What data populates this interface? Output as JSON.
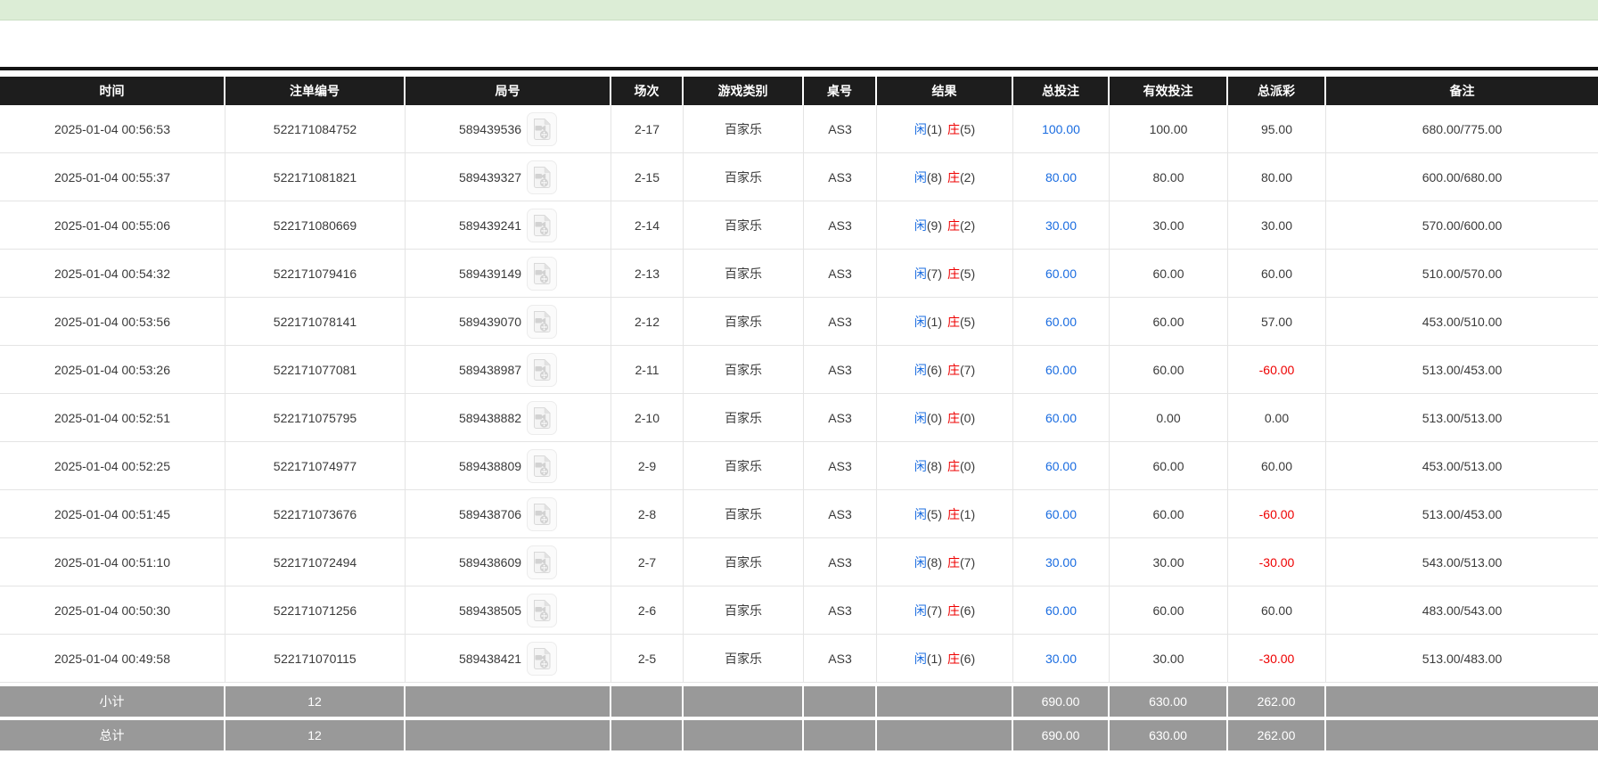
{
  "table": {
    "columns": [
      "时间",
      "注单编号",
      "局号",
      "场次",
      "游戏类别",
      "桌号",
      "结果",
      "总投注",
      "有效投注",
      "总派彩",
      "备注"
    ],
    "rows": [
      {
        "time": "2025-01-04 00:56:53",
        "bet_id": "522171084752",
        "round": "589439536",
        "session": "2-17",
        "game_type": "百家乐",
        "table_no": "AS3",
        "result": {
          "player_label": "闲",
          "player_score": "(1)",
          "banker_label": "庄",
          "banker_score": "(5)"
        },
        "total_bet": "100.00",
        "valid_bet": "100.00",
        "payout": "95.00",
        "remark": "680.00/775.00"
      },
      {
        "time": "2025-01-04 00:55:37",
        "bet_id": "522171081821",
        "round": "589439327",
        "session": "2-15",
        "game_type": "百家乐",
        "table_no": "AS3",
        "result": {
          "player_label": "闲",
          "player_score": "(8)",
          "banker_label": "庄",
          "banker_score": "(2)"
        },
        "total_bet": "80.00",
        "valid_bet": "80.00",
        "payout": "80.00",
        "remark": "600.00/680.00"
      },
      {
        "time": "2025-01-04 00:55:06",
        "bet_id": "522171080669",
        "round": "589439241",
        "session": "2-14",
        "game_type": "百家乐",
        "table_no": "AS3",
        "result": {
          "player_label": "闲",
          "player_score": "(9)",
          "banker_label": "庄",
          "banker_score": "(2)"
        },
        "total_bet": "30.00",
        "valid_bet": "30.00",
        "payout": "30.00",
        "remark": "570.00/600.00"
      },
      {
        "time": "2025-01-04 00:54:32",
        "bet_id": "522171079416",
        "round": "589439149",
        "session": "2-13",
        "game_type": "百家乐",
        "table_no": "AS3",
        "result": {
          "player_label": "闲",
          "player_score": "(7)",
          "banker_label": "庄",
          "banker_score": "(5)"
        },
        "total_bet": "60.00",
        "valid_bet": "60.00",
        "payout": "60.00",
        "remark": "510.00/570.00"
      },
      {
        "time": "2025-01-04 00:53:56",
        "bet_id": "522171078141",
        "round": "589439070",
        "session": "2-12",
        "game_type": "百家乐",
        "table_no": "AS3",
        "result": {
          "player_label": "闲",
          "player_score": "(1)",
          "banker_label": "庄",
          "banker_score": "(5)"
        },
        "total_bet": "60.00",
        "valid_bet": "60.00",
        "payout": "57.00",
        "remark": "453.00/510.00"
      },
      {
        "time": "2025-01-04 00:53:26",
        "bet_id": "522171077081",
        "round": "589438987",
        "session": "2-11",
        "game_type": "百家乐",
        "table_no": "AS3",
        "result": {
          "player_label": "闲",
          "player_score": "(6)",
          "banker_label": "庄",
          "banker_score": "(7)"
        },
        "total_bet": "60.00",
        "valid_bet": "60.00",
        "payout": "-60.00",
        "remark": "513.00/453.00"
      },
      {
        "time": "2025-01-04 00:52:51",
        "bet_id": "522171075795",
        "round": "589438882",
        "session": "2-10",
        "game_type": "百家乐",
        "table_no": "AS3",
        "result": {
          "player_label": "闲",
          "player_score": "(0)",
          "banker_label": "庄",
          "banker_score": "(0)"
        },
        "total_bet": "60.00",
        "valid_bet": "0.00",
        "payout": "0.00",
        "remark": "513.00/513.00"
      },
      {
        "time": "2025-01-04 00:52:25",
        "bet_id": "522171074977",
        "round": "589438809",
        "session": "2-9",
        "game_type": "百家乐",
        "table_no": "AS3",
        "result": {
          "player_label": "闲",
          "player_score": "(8)",
          "banker_label": "庄",
          "banker_score": "(0)"
        },
        "total_bet": "60.00",
        "valid_bet": "60.00",
        "payout": "60.00",
        "remark": "453.00/513.00"
      },
      {
        "time": "2025-01-04 00:51:45",
        "bet_id": "522171073676",
        "round": "589438706",
        "session": "2-8",
        "game_type": "百家乐",
        "table_no": "AS3",
        "result": {
          "player_label": "闲",
          "player_score": "(5)",
          "banker_label": "庄",
          "banker_score": "(1)"
        },
        "total_bet": "60.00",
        "valid_bet": "60.00",
        "payout": "-60.00",
        "remark": "513.00/453.00"
      },
      {
        "time": "2025-01-04 00:51:10",
        "bet_id": "522171072494",
        "round": "589438609",
        "session": "2-7",
        "game_type": "百家乐",
        "table_no": "AS3",
        "result": {
          "player_label": "闲",
          "player_score": "(8)",
          "banker_label": "庄",
          "banker_score": "(7)"
        },
        "total_bet": "30.00",
        "valid_bet": "30.00",
        "payout": "-30.00",
        "remark": "543.00/513.00"
      },
      {
        "time": "2025-01-04 00:50:30",
        "bet_id": "522171071256",
        "round": "589438505",
        "session": "2-6",
        "game_type": "百家乐",
        "table_no": "AS3",
        "result": {
          "player_label": "闲",
          "player_score": "(7)",
          "banker_label": "庄",
          "banker_score": "(6)"
        },
        "total_bet": "60.00",
        "valid_bet": "60.00",
        "payout": "60.00",
        "remark": "483.00/543.00"
      },
      {
        "time": "2025-01-04 00:49:58",
        "bet_id": "522171070115",
        "round": "589438421",
        "session": "2-5",
        "game_type": "百家乐",
        "table_no": "AS3",
        "result": {
          "player_label": "闲",
          "player_score": "(1)",
          "banker_label": "庄",
          "banker_score": "(6)"
        },
        "total_bet": "30.00",
        "valid_bet": "30.00",
        "payout": "-30.00",
        "remark": "513.00/483.00"
      }
    ],
    "subtotal": {
      "label": "小计",
      "count": "12",
      "total_bet": "690.00",
      "valid_bet": "630.00",
      "payout": "262.00"
    },
    "total": {
      "label": "总计",
      "count": "12",
      "total_bet": "690.00",
      "valid_bet": "630.00",
      "payout": "262.00"
    }
  },
  "icons": {
    "round_replay": "video-file-icon"
  },
  "colors": {
    "header_bg": "#1d1d1d",
    "summary_bg": "#999999",
    "link_blue": "#1a6ce0",
    "banker_red": "#ee0000",
    "negative_red": "#ee0000",
    "top_bar_green": "#dcedd6",
    "row_border": "#e4e4e4"
  }
}
